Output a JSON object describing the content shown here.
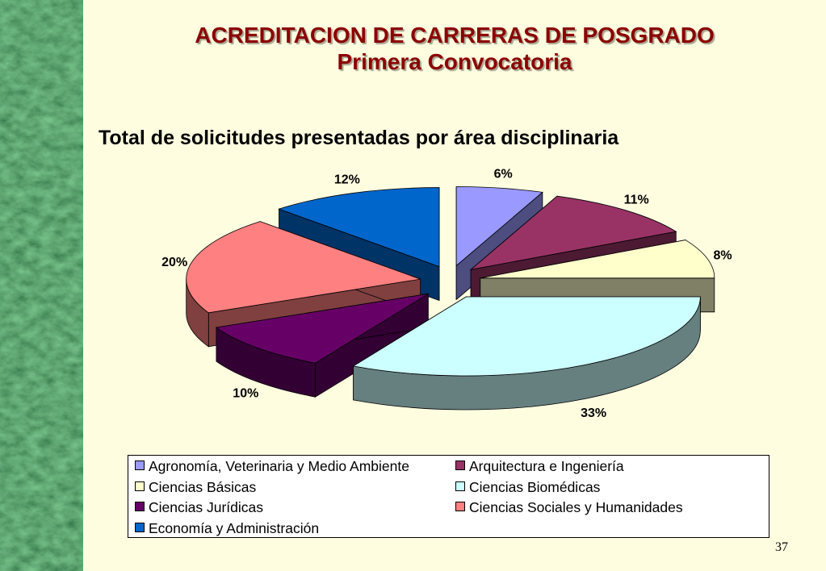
{
  "slide": {
    "title_line1": "ACREDITACION DE CARRERAS DE POSGRADO",
    "title_line2": "Primera Convocatoria",
    "subtitle": "Total de solicitudes presentadas por área disciplinaria",
    "page_number": "37"
  },
  "colors": {
    "background": "#fffde0",
    "title": "#8b0000",
    "sidebar": "#1f5a30"
  },
  "chart_data": {
    "type": "pie",
    "style": "3d-exploded",
    "title": "",
    "legend_position": "bottom",
    "categories": [
      "Agronomía, Veterinaria y Medio Ambiente",
      "Arquitectura e Ingeniería",
      "Ciencias Básicas",
      "Ciencias Biomédicas",
      "Ciencias Jurídicas",
      "Ciencias Sociales y Humanidades",
      "Economía y Administración"
    ],
    "values": [
      6,
      11,
      8,
      33,
      10,
      20,
      12
    ],
    "labels": [
      "6%",
      "11%",
      "8%",
      "33%",
      "10%",
      "20%",
      "12%"
    ],
    "colors": [
      "#9999ff",
      "#993366",
      "#ffffcc",
      "#ccffff",
      "#660066",
      "#ff8080",
      "#0066cc"
    ]
  }
}
